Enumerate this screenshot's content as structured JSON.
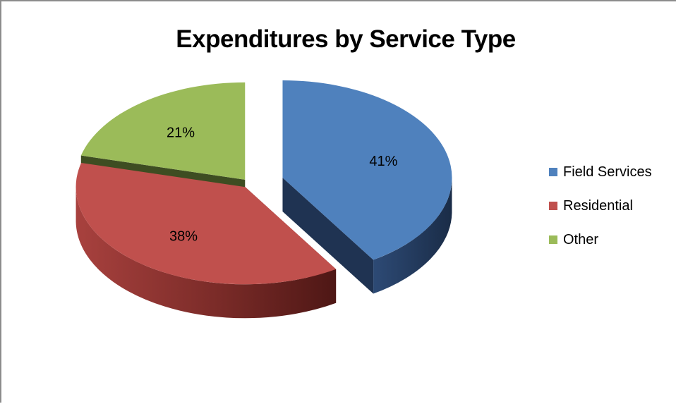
{
  "chart_data": {
    "type": "pie",
    "title": "Expenditures by Service Type",
    "slices": [
      {
        "label": "Field Services",
        "value": 41,
        "value_label": "41%",
        "color": "#4f81bd",
        "side_color": "#1f3352"
      },
      {
        "label": "Residential",
        "value": 38,
        "value_label": "38%",
        "color": "#c0504d",
        "side_color": "#702320"
      },
      {
        "label": "Other",
        "value": 21,
        "value_label": "21%",
        "color": "#9bbb59",
        "side_color": "#3e4d22"
      }
    ],
    "style": "3d-exploded",
    "legend_position": "right"
  }
}
